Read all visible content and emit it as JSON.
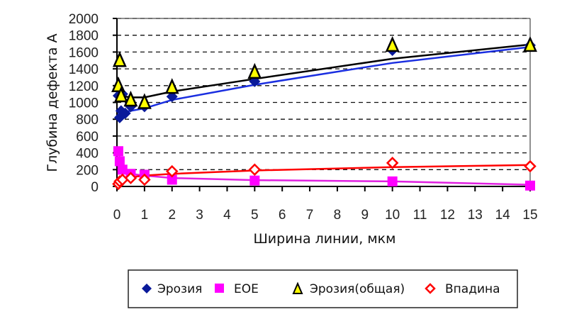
{
  "chart_data": {
    "type": "scatter",
    "title": "",
    "xlabel": "Ширина линии, мкм",
    "ylabel": "Глубина дефекта А",
    "xlim": [
      0,
      15
    ],
    "ylim": [
      0,
      2000
    ],
    "xticks": [
      "0",
      "1",
      "2",
      "3",
      "4",
      "5",
      "6",
      "7",
      "8",
      "9",
      "10",
      "11",
      "12",
      "13",
      "14",
      "15"
    ],
    "yticks": [
      "0",
      "200",
      "400",
      "600",
      "800",
      "1000",
      "1200",
      "1400",
      "1600",
      "1800",
      "2000"
    ],
    "grid": "horizontal dashed",
    "legend_position": "bottom",
    "series": [
      {
        "name": "Эрозия",
        "marker": "diamond",
        "color": "#0a1a9a",
        "line_color": "#1a2ee0",
        "points": [
          [
            0.05,
            1080
          ],
          [
            0.1,
            820
          ],
          [
            0.15,
            900
          ],
          [
            0.2,
            1100
          ],
          [
            0.3,
            870
          ],
          [
            0.5,
            950
          ],
          [
            1,
            950
          ],
          [
            2,
            1070
          ],
          [
            5,
            1250
          ],
          [
            10,
            1620
          ],
          [
            15,
            1680
          ]
        ],
        "trendline": [
          [
            0.05,
            880
          ],
          [
            0.5,
            900
          ],
          [
            1,
            930
          ],
          [
            2,
            1030
          ],
          [
            5,
            1210
          ],
          [
            10,
            1470
          ],
          [
            15,
            1660
          ]
        ]
      },
      {
        "name": "EOE",
        "marker": "square",
        "color": "#ff00ff",
        "line_color": "#e020e0",
        "points": [
          [
            0.05,
            420
          ],
          [
            0.1,
            300
          ],
          [
            0.2,
            200
          ],
          [
            0.5,
            150
          ],
          [
            1,
            140
          ],
          [
            2,
            80
          ],
          [
            5,
            70
          ],
          [
            10,
            60
          ],
          [
            15,
            10
          ]
        ],
        "trendline": [
          [
            0.05,
            420
          ],
          [
            0.2,
            200
          ],
          [
            0.5,
            150
          ],
          [
            1,
            130
          ],
          [
            2,
            100
          ],
          [
            5,
            75
          ],
          [
            10,
            60
          ],
          [
            15,
            20
          ]
        ]
      },
      {
        "name": "Эрозия(общая)",
        "marker": "triangle",
        "color": "#ffff00",
        "edge_color": "#000000",
        "line_color": "#000000",
        "points": [
          [
            0.1,
            1500
          ],
          [
            0.05,
            1200
          ],
          [
            0.15,
            1080
          ],
          [
            0.5,
            1030
          ],
          [
            1,
            1000
          ],
          [
            2,
            1180
          ],
          [
            5,
            1360
          ],
          [
            10,
            1680
          ],
          [
            15,
            1680
          ]
        ],
        "trendline": [
          [
            0.1,
            1080
          ],
          [
            0.5,
            1060
          ],
          [
            1,
            1060
          ],
          [
            2,
            1130
          ],
          [
            5,
            1280
          ],
          [
            10,
            1520
          ],
          [
            15,
            1690
          ]
        ]
      },
      {
        "name": "Впадина",
        "marker": "diamond-open",
        "color": "#ff0000",
        "line_color": "#ff0000",
        "points": [
          [
            0.05,
            30
          ],
          [
            0.1,
            60
          ],
          [
            0.2,
            80
          ],
          [
            0.5,
            100
          ],
          [
            1,
            80
          ],
          [
            2,
            180
          ],
          [
            5,
            200
          ],
          [
            10,
            280
          ],
          [
            15,
            240
          ]
        ],
        "trendline": [
          [
            0.05,
            60
          ],
          [
            0.5,
            110
          ],
          [
            1,
            130
          ],
          [
            2,
            150
          ],
          [
            5,
            190
          ],
          [
            10,
            230
          ],
          [
            15,
            255
          ]
        ]
      }
    ]
  },
  "legend": {
    "items": [
      {
        "label": "Эрозия"
      },
      {
        "label": "EOE"
      },
      {
        "label": "Эрозия(общая)"
      },
      {
        "label": "Впадина"
      }
    ]
  }
}
